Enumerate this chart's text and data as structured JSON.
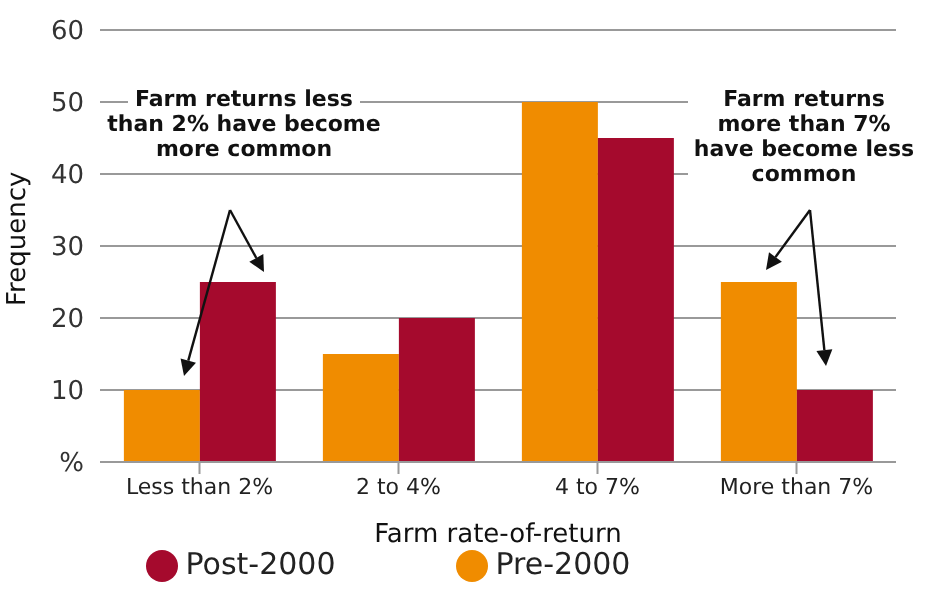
{
  "chart_data": {
    "type": "bar",
    "xlabel": "Farm rate-of-return",
    "ylabel": "Frequency",
    "categories": [
      "Less than 2%",
      "2 to 4%",
      "4 to 7%",
      "More than 7%"
    ],
    "series": [
      {
        "name": "Pre-2000",
        "color": "#f08c00",
        "values": [
          10,
          15,
          50,
          25
        ]
      },
      {
        "name": "Post-2000",
        "color": "#a50a2d",
        "values": [
          25,
          20,
          45,
          10
        ]
      }
    ],
    "ylim": [
      0,
      60
    ],
    "yticks": [
      {
        "value": 0,
        "label": "%"
      },
      10,
      20,
      30,
      40,
      50,
      60
    ],
    "grid": "y",
    "legend": "bottom",
    "annotations": [
      "Farm returns less than 2% have become more common",
      "Farm returns more than 7% have become less common"
    ]
  }
}
